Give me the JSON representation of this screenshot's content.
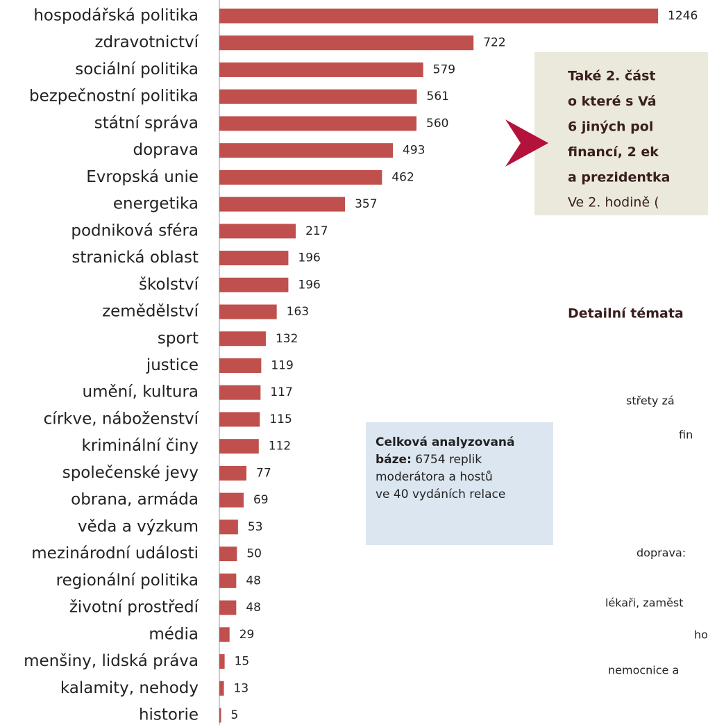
{
  "chart_data": {
    "type": "bar",
    "orientation": "horizontal",
    "color": "#c0504d",
    "categories": [
      "hospodářská politika",
      "zdravotnictví",
      "sociální politika",
      "bezpečnostní politika",
      "státní správa",
      "doprava",
      "Evropská unie",
      "energetika",
      "podniková sféra",
      "stranická oblast",
      "školství",
      "zemědělství",
      "sport",
      "justice",
      "umění, kultura",
      "církve, náboženství",
      "kriminální činy",
      "společenské jevy",
      "obrana, armáda",
      "věda a výzkum",
      "mezinárodní události",
      "regionální politika",
      "životní prostředí",
      "média",
      "menšiny, lidská práva",
      "kalamity, nehody",
      "historie"
    ],
    "values": [
      1246,
      722,
      579,
      561,
      560,
      493,
      462,
      357,
      217,
      196,
      196,
      163,
      132,
      119,
      117,
      115,
      112,
      77,
      69,
      53,
      50,
      48,
      48,
      29,
      15,
      13,
      5
    ],
    "annotations": {
      "callout": [
        "Také 2. část",
        "o které s Vá",
        "6 jiných pol",
        "financí, 2 ek",
        "a prezidentka"
      ],
      "callout_note": "Ve 2. hodině (",
      "base_note": {
        "bold": [
          "Celková analyzovaná",
          "báze:"
        ],
        "rest": [
          " 6754 replik",
          "moderátora a hostů",
          "ve 40 vydáních relace"
        ]
      },
      "detail_title": "Detailní témata",
      "detail_labels": [
        "střety zá",
        "fin",
        "doprava:",
        "lékaři, zaměst",
        "ho",
        "nemocnice a"
      ]
    }
  }
}
